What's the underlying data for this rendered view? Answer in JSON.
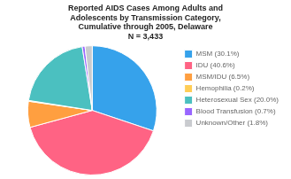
{
  "chart_data": {
    "type": "pie",
    "title": "Reported AIDS Cases Among Adults and\nAdolescents by Transmission Category,\nCumulative through 2005, Delaware\nN = 3,433",
    "categories": [
      "MSM (30.1%)",
      "IDU (40.6%)",
      "MSM/IDU (6.5%)",
      "Hemophilia (0.2%)",
      "Heterosexual Sex (20.0%)",
      "Blood Transfusion (0.7%)",
      "Unknown/Other (1.8%)"
    ],
    "values": [
      30.1,
      40.6,
      6.5,
      0.2,
      20.0,
      0.7,
      1.8
    ],
    "legend": "right"
  }
}
